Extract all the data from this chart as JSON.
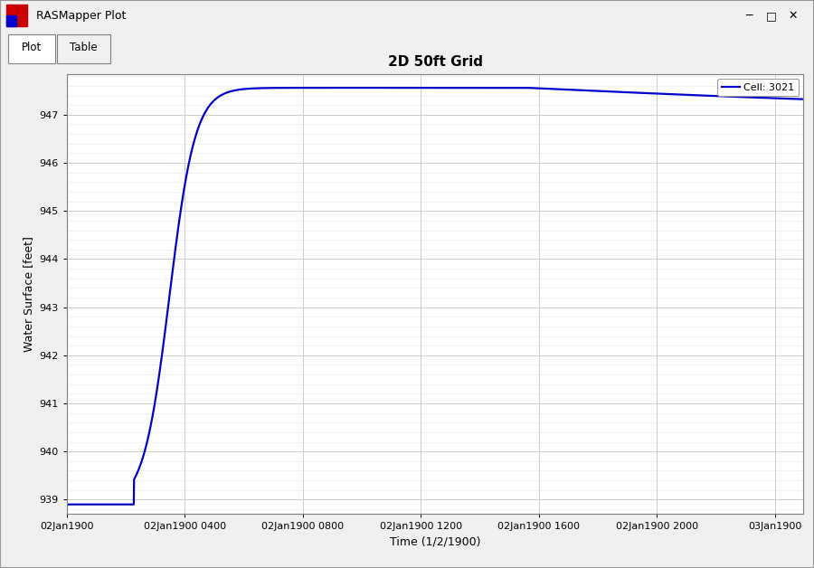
{
  "title": "2D 50ft Grid",
  "xlabel": "Time (1/2/1900)",
  "ylabel": "Water Surface [feet]",
  "legend_label": "Cell: 3021",
  "line_color": "#0000CC",
  "line_width": 1.6,
  "ylim": [
    938.7,
    947.85
  ],
  "yticks": [
    939,
    940,
    941,
    942,
    943,
    944,
    945,
    946,
    947
  ],
  "xtick_labels": [
    "02Jan1900",
    "02Jan1900 0400",
    "02Jan1900 0800",
    "02Jan1900 1200",
    "02Jan1900 1600",
    "02Jan1900 2000",
    "03Jan1900"
  ],
  "bg_color": "#FFFFFF",
  "grid_color": "#CCCCCC",
  "minor_grid_color": "#E8E8E8",
  "title_fontsize": 11,
  "axis_fontsize": 9,
  "tick_fontsize": 8,
  "window_bg": "#F0F0F0",
  "window_title": "RASMapper Plot",
  "titlebar_bg": "#FFFFFF",
  "tab_active_bg": "#FFFFFF",
  "tab_inactive_bg": "#D8D8D8"
}
